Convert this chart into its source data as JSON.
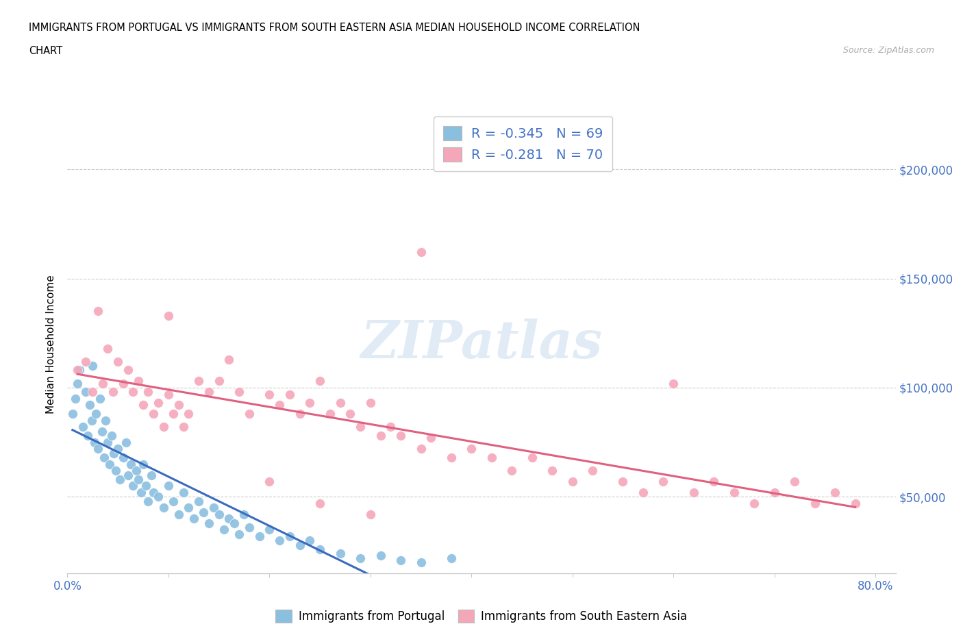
{
  "title_line1": "IMMIGRANTS FROM PORTUGAL VS IMMIGRANTS FROM SOUTH EASTERN ASIA MEDIAN HOUSEHOLD INCOME CORRELATION",
  "title_line2": "CHART",
  "source": "Source: ZipAtlas.com",
  "ylabel": "Median Household Income",
  "xlim": [
    0.0,
    0.82
  ],
  "ylim": [
    15000,
    225000
  ],
  "ytick_vals": [
    50000,
    100000,
    150000,
    200000
  ],
  "ytick_labels": [
    "$50,000",
    "$100,000",
    "$150,000",
    "$200,000"
  ],
  "xtick_vals": [
    0.0,
    0.1,
    0.2,
    0.3,
    0.4,
    0.5,
    0.6,
    0.7,
    0.8
  ],
  "color_portugal": "#8BBFE0",
  "color_sea": "#F4A7B9",
  "line_portugal": "#3A6BBF",
  "line_sea": "#E06080",
  "line_dashed": "#B0B0B0",
  "legend_r1": "-0.345",
  "legend_n1": "69",
  "legend_r2": "-0.281",
  "legend_n2": "70",
  "legend_text_color": "#4472C4",
  "portugal_x": [
    0.005,
    0.008,
    0.01,
    0.012,
    0.015,
    0.018,
    0.02,
    0.022,
    0.024,
    0.025,
    0.027,
    0.028,
    0.03,
    0.032,
    0.034,
    0.036,
    0.038,
    0.04,
    0.042,
    0.044,
    0.046,
    0.048,
    0.05,
    0.052,
    0.055,
    0.058,
    0.06,
    0.063,
    0.065,
    0.068,
    0.07,
    0.073,
    0.075,
    0.078,
    0.08,
    0.083,
    0.085,
    0.09,
    0.095,
    0.1,
    0.105,
    0.11,
    0.115,
    0.12,
    0.125,
    0.13,
    0.135,
    0.14,
    0.145,
    0.15,
    0.155,
    0.16,
    0.165,
    0.17,
    0.175,
    0.18,
    0.19,
    0.2,
    0.21,
    0.22,
    0.23,
    0.24,
    0.25,
    0.27,
    0.29,
    0.31,
    0.33,
    0.35,
    0.38
  ],
  "portugal_y": [
    88000,
    95000,
    102000,
    108000,
    82000,
    98000,
    78000,
    92000,
    85000,
    110000,
    75000,
    88000,
    72000,
    95000,
    80000,
    68000,
    85000,
    75000,
    65000,
    78000,
    70000,
    62000,
    72000,
    58000,
    68000,
    75000,
    60000,
    65000,
    55000,
    62000,
    58000,
    52000,
    65000,
    55000,
    48000,
    60000,
    52000,
    50000,
    45000,
    55000,
    48000,
    42000,
    52000,
    45000,
    40000,
    48000,
    43000,
    38000,
    45000,
    42000,
    35000,
    40000,
    38000,
    33000,
    42000,
    36000,
    32000,
    35000,
    30000,
    32000,
    28000,
    30000,
    26000,
    24000,
    22000,
    23000,
    21000,
    20000,
    22000
  ],
  "sea_x": [
    0.01,
    0.018,
    0.025,
    0.03,
    0.035,
    0.04,
    0.045,
    0.05,
    0.055,
    0.06,
    0.065,
    0.07,
    0.075,
    0.08,
    0.085,
    0.09,
    0.095,
    0.1,
    0.105,
    0.11,
    0.115,
    0.12,
    0.13,
    0.14,
    0.15,
    0.16,
    0.17,
    0.18,
    0.2,
    0.21,
    0.22,
    0.23,
    0.24,
    0.25,
    0.26,
    0.27,
    0.28,
    0.29,
    0.3,
    0.31,
    0.32,
    0.33,
    0.35,
    0.36,
    0.38,
    0.4,
    0.42,
    0.44,
    0.46,
    0.48,
    0.5,
    0.52,
    0.55,
    0.57,
    0.59,
    0.62,
    0.64,
    0.66,
    0.68,
    0.7,
    0.72,
    0.74,
    0.76,
    0.78,
    0.6,
    0.35,
    0.1,
    0.2,
    0.25,
    0.3
  ],
  "sea_y": [
    108000,
    112000,
    98000,
    135000,
    102000,
    118000,
    98000,
    112000,
    102000,
    108000,
    98000,
    103000,
    92000,
    98000,
    88000,
    93000,
    82000,
    97000,
    88000,
    92000,
    82000,
    88000,
    103000,
    98000,
    103000,
    113000,
    98000,
    88000,
    97000,
    92000,
    97000,
    88000,
    93000,
    103000,
    88000,
    93000,
    88000,
    82000,
    93000,
    78000,
    82000,
    78000,
    72000,
    77000,
    68000,
    72000,
    68000,
    62000,
    68000,
    62000,
    57000,
    62000,
    57000,
    52000,
    57000,
    52000,
    57000,
    52000,
    47000,
    52000,
    57000,
    47000,
    52000,
    47000,
    102000,
    162000,
    133000,
    57000,
    47000,
    42000
  ]
}
